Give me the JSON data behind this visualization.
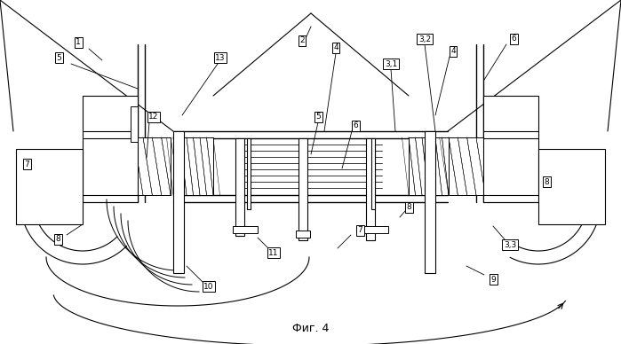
{
  "title": "Фиг. 4",
  "bg_color": "#ffffff",
  "line_color": "#000000",
  "figsize": [
    6.99,
    3.88
  ],
  "dpi": 100
}
